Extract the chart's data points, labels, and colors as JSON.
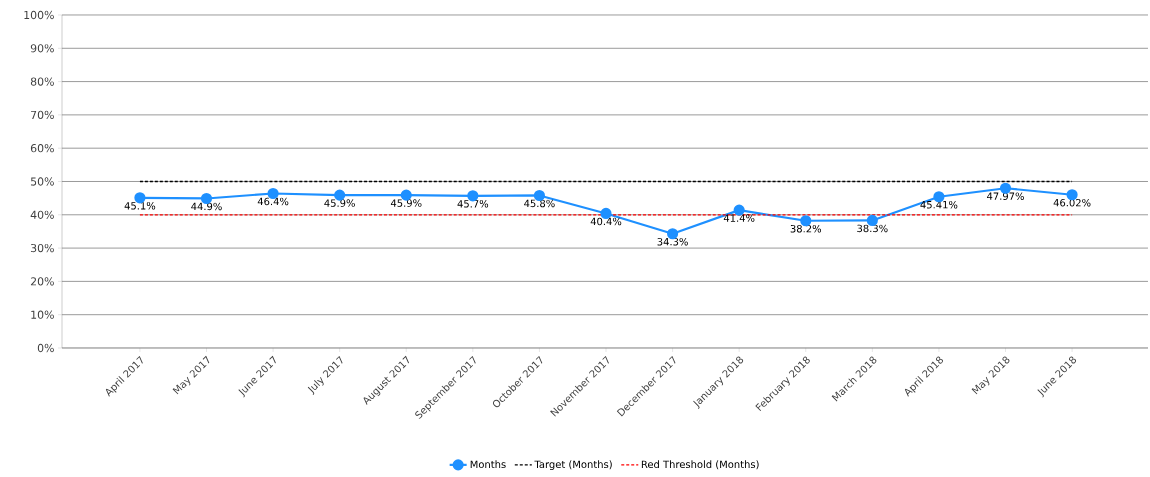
{
  "chart_data": {
    "type": "line",
    "categories": [
      "April 2017",
      "May 2017",
      "June 2017",
      "July 2017",
      "August 2017",
      "September 2017",
      "October 2017",
      "November 2017",
      "December 2017",
      "January 2018",
      "February 2018",
      "March 2018",
      "April 2018",
      "May 2018",
      "June 2018"
    ],
    "series": [
      {
        "name": "Months",
        "color": "#1e90ff",
        "marker": "circle",
        "line_style": "solid",
        "values": [
          45.1,
          44.9,
          46.4,
          45.9,
          45.9,
          45.7,
          45.8,
          40.4,
          34.3,
          41.4,
          38.2,
          38.3,
          45.41,
          47.97,
          46.02
        ],
        "value_labels": [
          "45.1%",
          "44.9%",
          "46.4%",
          "45.9%",
          "45.9%",
          "45.7%",
          "45.8%",
          "40.4%",
          "34.3%",
          "41.4%",
          "38.2%",
          "38.3%",
          "45.41%",
          "47.97%",
          "46.02%"
        ]
      },
      {
        "name": "Target (Months)",
        "color": "#000000",
        "marker": "none",
        "line_style": "dashed",
        "values": [
          50,
          50,
          50,
          50,
          50,
          50,
          50,
          50,
          50,
          50,
          50,
          50,
          50,
          50,
          50
        ]
      },
      {
        "name": "Red Threshold (Months)",
        "color": "#ff0000",
        "marker": "none",
        "line_style": "dashed",
        "values": [
          40,
          40,
          40,
          40,
          40,
          40,
          40,
          40,
          40,
          40,
          40,
          40,
          40,
          40,
          40
        ]
      }
    ],
    "ylim": [
      0,
      100
    ],
    "yticks": [
      {
        "value": 0,
        "label": "0%"
      },
      {
        "value": 10,
        "label": "10%"
      },
      {
        "value": 20,
        "label": "20%"
      },
      {
        "value": 30,
        "label": "30%"
      },
      {
        "value": 40,
        "label": "40%"
      },
      {
        "value": 50,
        "label": "50%"
      },
      {
        "value": 60,
        "label": "60%"
      },
      {
        "value": 70,
        "label": "70%"
      },
      {
        "value": 80,
        "label": "80%"
      },
      {
        "value": 90,
        "label": "90%"
      },
      {
        "value": 100,
        "label": "100%"
      }
    ],
    "grid": "y",
    "legend": "bottom"
  }
}
